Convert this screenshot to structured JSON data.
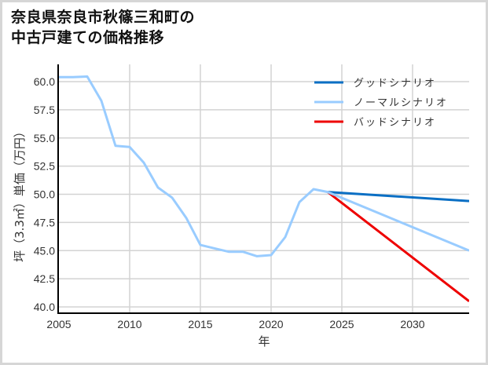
{
  "title_line1": "奈良県奈良市秋篠三和町の",
  "title_line2": "中古戸建ての価格推移",
  "chart_data": {
    "type": "line",
    "title": "奈良県奈良市秋篠三和町の中古戸建ての価格推移",
    "xlabel": "年",
    "ylabel": "坪（3.3㎡）単価（万円）",
    "xlim": [
      2005,
      2034
    ],
    "ylim": [
      39.6,
      61.5
    ],
    "xticks": [
      2005,
      2010,
      2015,
      2020,
      2025,
      2030
    ],
    "yticks": [
      40.0,
      42.5,
      45.0,
      47.5,
      50.0,
      52.5,
      55.0,
      57.5,
      60.0
    ],
    "ytick_labels": [
      "40.0",
      "42.5",
      "45.0",
      "47.5",
      "50.0",
      "52.5",
      "55.0",
      "57.5",
      "60.0"
    ],
    "grid": true,
    "legend_position": "upper right",
    "series": [
      {
        "name": "グッドシナリオ",
        "color": "#0a6fc4",
        "x": [
          2024,
          2034
        ],
        "values": [
          50.2,
          49.4
        ]
      },
      {
        "name": "ノーマルシナリオ",
        "color": "#99ccff",
        "x": [
          2005,
          2006,
          2007,
          2008,
          2009,
          2010,
          2011,
          2012,
          2013,
          2014,
          2015,
          2016,
          2017,
          2018,
          2019,
          2020,
          2021,
          2022,
          2023,
          2024,
          2034
        ],
        "values": [
          60.4,
          60.4,
          60.45,
          58.3,
          54.3,
          54.2,
          52.8,
          50.6,
          49.7,
          47.9,
          45.5,
          45.2,
          44.9,
          44.9,
          44.5,
          44.6,
          46.2,
          49.3,
          50.45,
          50.2,
          45.0
        ]
      },
      {
        "name": "バッドシナリオ",
        "color": "#ee0000",
        "x": [
          2024,
          2034
        ],
        "values": [
          50.2,
          40.5
        ]
      }
    ]
  }
}
